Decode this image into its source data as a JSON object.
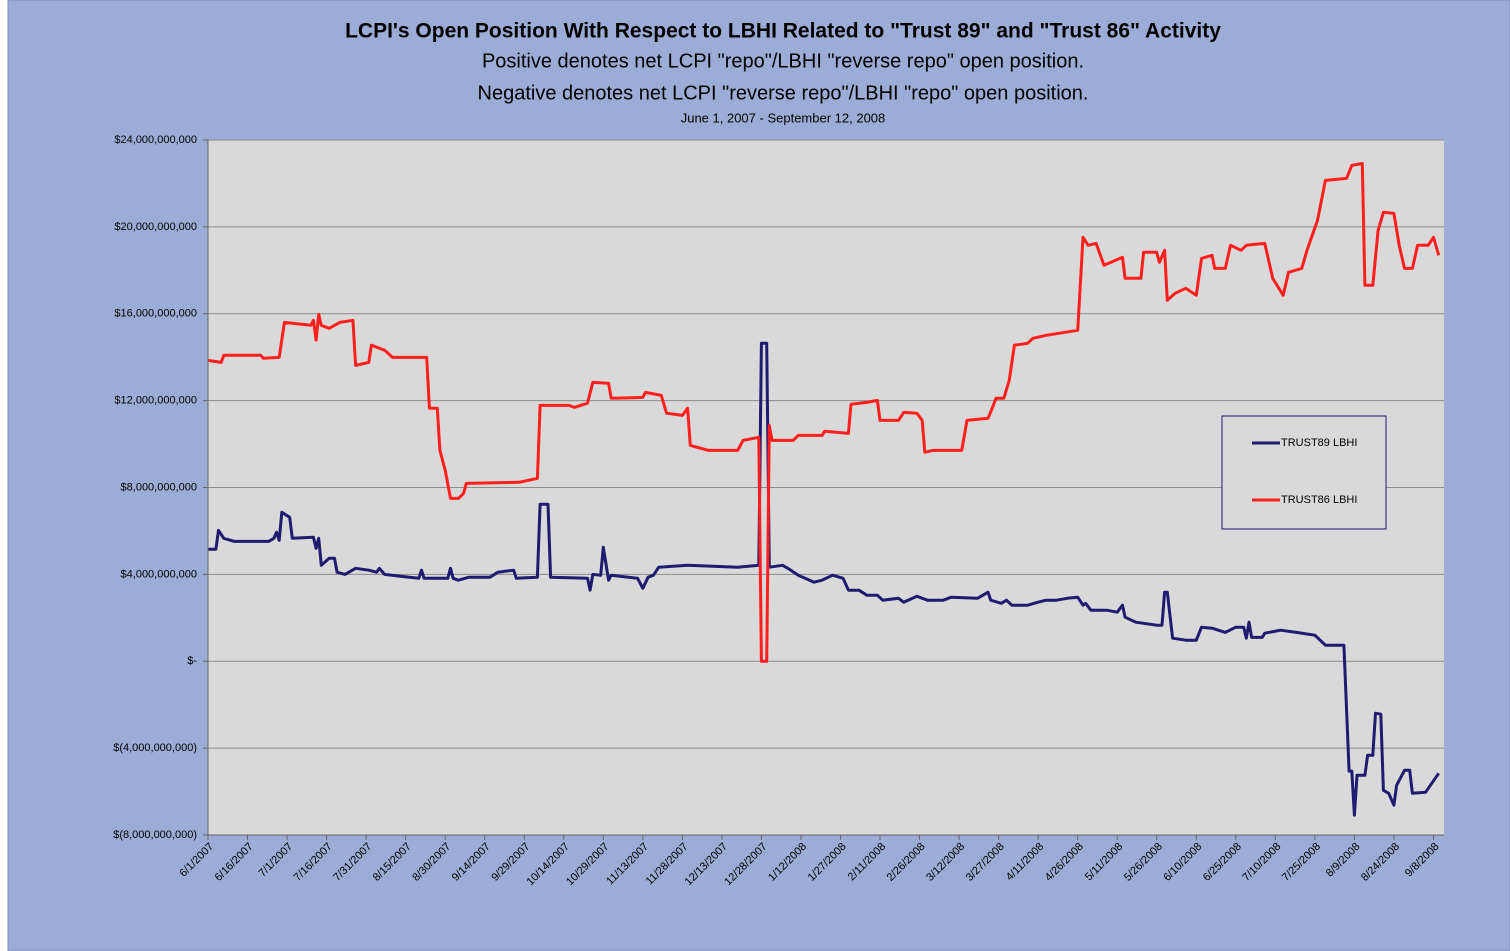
{
  "chart_data": {
    "type": "line",
    "title": "LCPI's Open Position With Respect to LBHI Related to \"Trust 89\" and \"Trust 86\" Activity",
    "subtitle": [
      "Positive denotes net LCPI \"repo\"/LBHI \"reverse repo\" open position.",
      "Negative denotes net LCPI \"reverse repo\"/LBHI \"repo\" open position."
    ],
    "period": "June 1, 2007 - September 12, 2008",
    "xlim": [
      "6/1/2007",
      "9/12/2008"
    ],
    "xticks": [
      "6/1/2007",
      "6/16/2007",
      "7/1/2007",
      "7/16/2007",
      "7/31/2007",
      "8/15/2007",
      "8/30/2007",
      "9/14/2007",
      "9/29/2007",
      "10/14/2007",
      "10/29/2007",
      "11/13/2007",
      "11/28/2007",
      "12/13/2007",
      "12/28/2007",
      "1/12/2008",
      "1/27/2008",
      "2/11/2008",
      "2/26/2008",
      "3/12/2008",
      "3/27/2008",
      "4/11/2008",
      "4/26/2008",
      "5/11/2008",
      "5/26/2008",
      "6/10/2008",
      "6/25/2008",
      "7/10/2008",
      "7/25/2008",
      "8/9/2008",
      "8/24/2008",
      "9/8/2008"
    ],
    "ylim": [
      -8000000000,
      24000000000
    ],
    "yticks": [
      {
        "value": -8000000000,
        "label": "$(8,000,000,000)"
      },
      {
        "value": -4000000000,
        "label": "$(4,000,000,000)"
      },
      {
        "value": 0,
        "label": "$-"
      },
      {
        "value": 4000000000,
        "label": "$4,000,000,000"
      },
      {
        "value": 8000000000,
        "label": "$8,000,000,000"
      },
      {
        "value": 12000000000,
        "label": "$12,000,000,000"
      },
      {
        "value": 16000000000,
        "label": "$16,000,000,000"
      },
      {
        "value": 20000000000,
        "label": "$20,000,000,000"
      },
      {
        "value": 24000000000,
        "label": "$24,000,000,000"
      }
    ],
    "grid": true,
    "series": [
      {
        "name": "TRUST89 LBHI",
        "color": "#1f1b6e",
        "x": [
          "6/1/2007",
          "6/4/2007",
          "6/5/2007",
          "6/7/2007",
          "6/11/2007",
          "6/24/2007",
          "6/26/2007",
          "6/27/2007",
          "6/28/2007",
          "6/29/2007",
          "7/2/2007",
          "7/3/2007",
          "7/11/2007",
          "7/12/2007",
          "7/13/2007",
          "7/14/2007",
          "7/17/2007",
          "7/19/2007",
          "7/20/2007",
          "7/23/2007",
          "7/27/2007",
          "8/1/2007",
          "8/4/2007",
          "8/5/2007",
          "8/7/2007",
          "8/13/2007",
          "8/20/2007",
          "8/21/2007",
          "8/22/2007",
          "8/31/2007",
          "9/1/2007",
          "9/2/2007",
          "9/4/2007",
          "9/8/2007",
          "9/16/2007",
          "9/19/2007",
          "9/25/2007",
          "9/26/2007",
          "10/4/2007",
          "10/5/2007",
          "10/8/2007",
          "10/9/2007",
          "10/23/2007",
          "10/24/2007",
          "10/25/2007",
          "10/28/2007",
          "10/29/2007",
          "10/31/2007",
          "11/1/2007",
          "11/11/2007",
          "11/13/2007",
          "11/15/2007",
          "11/17/2007",
          "11/19/2007",
          "11/30/2007",
          "12/19/2007",
          "12/27/2007",
          "12/28/2007",
          "12/30/2007",
          "12/31/2007",
          "1/5/2008",
          "1/7/2008",
          "1/11/2008",
          "1/17/2008",
          "1/20/2008",
          "1/24/2008",
          "1/28/2008",
          "1/30/2008",
          "2/3/2008",
          "2/6/2008",
          "2/10/2008",
          "2/12/2008",
          "2/18/2008",
          "2/20/2008",
          "2/25/2008",
          "2/29/2008",
          "3/6/2008",
          "3/9/2008",
          "3/19/2008",
          "3/23/2008",
          "3/24/2008",
          "3/28/2008",
          "3/30/2008",
          "4/1/2008",
          "4/7/2008",
          "4/11/2008",
          "4/14/2008",
          "4/18/2008",
          "4/22/2008",
          "4/26/2008",
          "4/28/2008",
          "4/29/2008",
          "5/1/2008",
          "5/7/2008",
          "5/11/2008",
          "5/13/2008",
          "5/14/2008",
          "5/18/2008",
          "5/26/2008",
          "5/28/2008",
          "5/29/2008",
          "5/30/2008",
          "6/1/2008",
          "6/6/2008",
          "6/10/2008",
          "6/12/2008",
          "6/16/2008",
          "6/21/2008",
          "6/25/2008",
          "6/28/2008",
          "6/29/2008",
          "6/30/2008",
          "7/1/2008",
          "7/5/2008",
          "7/6/2008",
          "7/12/2008",
          "7/18/2008",
          "7/25/2008",
          "7/29/2008",
          "8/5/2008",
          "8/7/2008",
          "8/8/2008",
          "8/9/2008",
          "8/10/2008",
          "8/13/2008",
          "8/14/2008",
          "8/16/2008",
          "8/17/2008",
          "8/19/2008",
          "8/20/2008",
          "8/22/2008",
          "8/24/2008",
          "8/25/2008",
          "8/28/2008",
          "8/30/2008",
          "8/31/2008",
          "9/5/2008",
          "9/10/2008"
        ],
        "values": [
          5160000000,
          5160000000,
          6030000000,
          5660000000,
          5520000000,
          5520000000,
          5660000000,
          5940000000,
          5570000000,
          6860000000,
          6630000000,
          5660000000,
          5710000000,
          5200000000,
          5660000000,
          4420000000,
          4740000000,
          4740000000,
          4100000000,
          4000000000,
          4280000000,
          4190000000,
          4100000000,
          4280000000,
          4000000000,
          3910000000,
          3820000000,
          4190000000,
          3820000000,
          3820000000,
          4280000000,
          3820000000,
          3730000000,
          3870000000,
          3870000000,
          4100000000,
          4190000000,
          3820000000,
          3870000000,
          7230000000,
          7230000000,
          3870000000,
          3820000000,
          3270000000,
          4000000000,
          3960000000,
          5250000000,
          3730000000,
          3960000000,
          3820000000,
          3360000000,
          3870000000,
          3960000000,
          4330000000,
          4420000000,
          4330000000,
          4420000000,
          14640000000,
          14640000000,
          4330000000,
          4420000000,
          4280000000,
          3960000000,
          3640000000,
          3730000000,
          3960000000,
          3820000000,
          3270000000,
          3270000000,
          3040000000,
          3040000000,
          2810000000,
          2900000000,
          2720000000,
          2990000000,
          2810000000,
          2810000000,
          2950000000,
          2900000000,
          3180000000,
          2810000000,
          2670000000,
          2810000000,
          2580000000,
          2580000000,
          2720000000,
          2810000000,
          2810000000,
          2900000000,
          2950000000,
          2580000000,
          2670000000,
          2350000000,
          2350000000,
          2260000000,
          2580000000,
          2030000000,
          1800000000,
          1660000000,
          1660000000,
          3180000000,
          3180000000,
          1060000000,
          970000000,
          970000000,
          1570000000,
          1520000000,
          1330000000,
          1570000000,
          1570000000,
          1060000000,
          1800000000,
          1100000000,
          1100000000,
          1290000000,
          1430000000,
          1330000000,
          1200000000,
          740000000,
          740000000,
          -5060000000,
          -5060000000,
          -7090000000,
          -5250000000,
          -5250000000,
          -4330000000,
          -4330000000,
          -2390000000,
          -2440000000,
          -5940000000,
          -6080000000,
          -6630000000,
          -5710000000,
          -5020000000,
          -5020000000,
          -6080000000,
          -6030000000,
          -5160000000
        ]
      },
      {
        "name": "TRUST86 LBHI",
        "color": "#ff1f1f",
        "x": [
          "6/1/2007",
          "6/6/2007",
          "6/7/2007",
          "6/21/2007",
          "6/22/2007",
          "6/28/2007",
          "6/30/2007",
          "7/10/2007",
          "7/11/2007",
          "7/12/2007",
          "7/13/2007",
          "7/14/2007",
          "7/17/2007",
          "7/21/2007",
          "7/26/2007",
          "7/27/2007",
          "8/1/2007",
          "8/2/2007",
          "8/7/2007",
          "8/10/2007",
          "8/23/2007",
          "8/24/2007",
          "8/27/2007",
          "8/28/2007",
          "8/30/2007",
          "9/1/2007",
          "9/4/2007",
          "9/6/2007",
          "9/7/2007",
          "9/27/2007",
          "10/4/2007",
          "10/5/2007",
          "10/16/2007",
          "10/18/2007",
          "10/23/2007",
          "10/25/2007",
          "10/31/2007",
          "11/1/2007",
          "11/13/2007",
          "11/14/2007",
          "11/20/2007",
          "11/22/2007",
          "11/28/2007",
          "11/30/2007",
          "12/1/2007",
          "12/8/2007",
          "12/19/2007",
          "12/21/2007",
          "12/27/2007",
          "12/28/2007",
          "12/30/2007",
          "12/31/2007",
          "1/1/2008",
          "1/9/2008",
          "1/11/2008",
          "1/20/2008",
          "1/21/2008",
          "1/30/2008",
          "1/31/2008",
          "2/6/2008",
          "2/10/2008",
          "2/11/2008",
          "2/18/2008",
          "2/20/2008",
          "2/25/2008",
          "2/27/2008",
          "2/28/2008",
          "3/2/2008",
          "3/13/2008",
          "3/15/2008",
          "3/23/2008",
          "3/25/2008",
          "3/26/2008",
          "3/29/2008",
          "3/31/2008",
          "4/2/2008",
          "4/7/2008",
          "4/9/2008",
          "4/14/2008",
          "4/26/2008",
          "4/28/2008",
          "4/30/2008",
          "5/3/2008",
          "5/6/2008",
          "5/13/2008",
          "5/14/2008",
          "5/20/2008",
          "5/21/2008",
          "5/26/2008",
          "5/27/2008",
          "5/29/2008",
          "5/30/2008",
          "6/2/2008",
          "6/6/2008",
          "6/10/2008",
          "6/12/2008",
          "6/16/2008",
          "6/17/2008",
          "6/21/2008",
          "6/23/2008",
          "6/27/2008",
          "6/29/2008",
          "7/6/2008",
          "7/9/2008",
          "7/13/2008",
          "7/15/2008",
          "7/20/2008",
          "7/22/2008",
          "7/26/2008",
          "7/29/2008",
          "8/6/2008",
          "8/8/2008",
          "8/12/2008",
          "8/13/2008",
          "8/16/2008",
          "8/18/2008",
          "8/20/2008",
          "8/24/2008",
          "8/26/2008",
          "8/28/2008",
          "8/31/2008",
          "9/2/2008",
          "9/6/2008",
          "9/8/2008",
          "9/10/2008"
        ],
        "values": [
          13850000000,
          13760000000,
          14090000000,
          14090000000,
          13950000000,
          13990000000,
          15600000000,
          15470000000,
          15700000000,
          14780000000,
          15970000000,
          15470000000,
          15330000000,
          15600000000,
          15700000000,
          13620000000,
          13760000000,
          14550000000,
          14320000000,
          13990000000,
          13990000000,
          11650000000,
          11650000000,
          9710000000,
          8790000000,
          7500000000,
          7500000000,
          7730000000,
          8190000000,
          8240000000,
          8420000000,
          11780000000,
          11780000000,
          11690000000,
          11880000000,
          12840000000,
          12800000000,
          12110000000,
          12150000000,
          12380000000,
          12240000000,
          11420000000,
          11320000000,
          11650000000,
          9940000000,
          9710000000,
          9710000000,
          10170000000,
          10310000000,
          0,
          0,
          10860000000,
          10170000000,
          10170000000,
          10400000000,
          10400000000,
          10590000000,
          10490000000,
          11830000000,
          11920000000,
          12010000000,
          11090000000,
          11090000000,
          11460000000,
          11420000000,
          11090000000,
          9620000000,
          9710000000,
          9710000000,
          11090000000,
          11190000000,
          11780000000,
          12110000000,
          12110000000,
          12930000000,
          14550000000,
          14640000000,
          14870000000,
          15010000000,
          15240000000,
          19520000000,
          19150000000,
          19240000000,
          18230000000,
          18600000000,
          17630000000,
          17630000000,
          18830000000,
          18830000000,
          18370000000,
          18920000000,
          16620000000,
          16940000000,
          17170000000,
          16850000000,
          18550000000,
          18690000000,
          18090000000,
          18090000000,
          19150000000,
          18920000000,
          19150000000,
          19240000000,
          17630000000,
          16850000000,
          17910000000,
          18090000000,
          18920000000,
          20300000000,
          22140000000,
          22230000000,
          22830000000,
          22920000000,
          17310000000,
          17310000000,
          19840000000,
          20670000000,
          20620000000,
          19150000000,
          18090000000,
          18090000000,
          19150000000,
          19150000000,
          19520000000,
          18690000000
        ]
      }
    ]
  }
}
